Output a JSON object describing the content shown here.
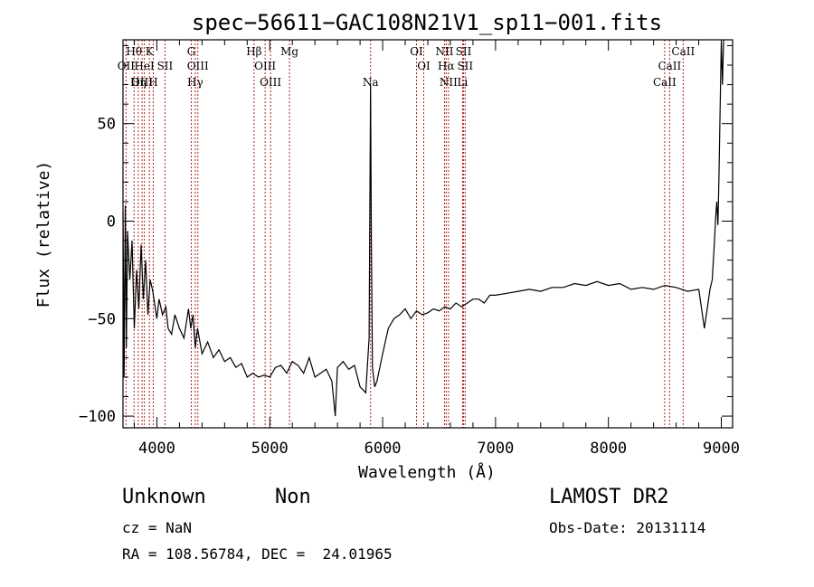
{
  "chart_data": {
    "type": "line",
    "title": "spec−56611−GAC108N21V1_sp11−001.fits",
    "xlabel": "Wavelength (Å)",
    "ylabel": "Flux (relative)",
    "xlim": [
      3700,
      9100
    ],
    "ylim": [
      -106,
      93
    ],
    "x_ticks": [
      4000,
      5000,
      6000,
      7000,
      8000,
      9000
    ],
    "y_ticks": [
      -100,
      -50,
      0,
      50
    ],
    "grid": false,
    "series": [
      {
        "x": [
          3700,
          3710,
          3720,
          3730,
          3740,
          3760,
          3780,
          3800,
          3820,
          3840,
          3860,
          3880,
          3900,
          3920,
          3940,
          3960,
          3980,
          4000,
          4020,
          4050,
          4080,
          4100,
          4130,
          4160,
          4200,
          4240,
          4280,
          4300,
          4320,
          4340,
          4360,
          4400,
          4450,
          4500,
          4550,
          4600,
          4650,
          4700,
          4750,
          4800,
          4850,
          4900,
          4950,
          5000,
          5050,
          5100,
          5150,
          5200,
          5250,
          5300,
          5350,
          5400,
          5450,
          5500,
          5550,
          5580,
          5600,
          5650,
          5700,
          5750,
          5800,
          5850,
          5880,
          5893,
          5900,
          5910,
          5930,
          5950,
          6000,
          6050,
          6100,
          6150,
          6200,
          6250,
          6300,
          6350,
          6400,
          6450,
          6500,
          6550,
          6600,
          6650,
          6700,
          6750,
          6800,
          6850,
          6900,
          6950,
          7000,
          7100,
          7200,
          7300,
          7400,
          7500,
          7600,
          7700,
          7800,
          7900,
          8000,
          8100,
          8200,
          8300,
          8400,
          8500,
          8600,
          8700,
          8800,
          8850,
          8900,
          8920,
          8940,
          8950,
          8960,
          8970,
          8980,
          8990,
          9000,
          9010,
          9020
        ],
        "y": [
          5,
          -80,
          8,
          -65,
          -5,
          -30,
          -10,
          -55,
          -25,
          -45,
          -12,
          -40,
          -20,
          -48,
          -30,
          -35,
          -42,
          -50,
          -40,
          -48,
          -44,
          -55,
          -58,
          -48,
          -55,
          -60,
          -45,
          -55,
          -48,
          -65,
          -55,
          -68,
          -62,
          -70,
          -66,
          -72,
          -70,
          -75,
          -73,
          -80,
          -78,
          -80,
          -79,
          -80,
          -75,
          -74,
          -78,
          -72,
          -74,
          -78,
          -70,
          -80,
          -78,
          -76,
          -82,
          -100,
          -75,
          -72,
          -76,
          -74,
          -85,
          -88,
          -60,
          70,
          -10,
          -75,
          -85,
          -82,
          -68,
          -55,
          -50,
          -48,
          -45,
          -50,
          -46,
          -48,
          -47,
          -45,
          -46,
          -44,
          -45,
          -42,
          -44,
          -42,
          -40,
          -40,
          -42,
          -38,
          -38,
          -37,
          -36,
          -35,
          -36,
          -34,
          -34,
          -32,
          -33,
          -31,
          -33,
          -32,
          -35,
          -34,
          -35,
          -33,
          -34,
          -36,
          -35,
          -55,
          -35,
          -30,
          -10,
          2,
          10,
          -2,
          25,
          60,
          92,
          70,
          93
        ]
      }
    ],
    "spectral_lines": [
      {
        "name": "Hθ",
        "wavelength": 3798,
        "row": 1
      },
      {
        "name": "K",
        "wavelength": 3934,
        "row": 1
      },
      {
        "name": "G",
        "wavelength": 4305,
        "row": 1
      },
      {
        "name": "Hβ",
        "wavelength": 4861,
        "row": 1
      },
      {
        "name": "Mg",
        "wavelength": 5175,
        "row": 1
      },
      {
        "name": "OI",
        "wavelength": 6300,
        "row": 1
      },
      {
        "name": "NII",
        "wavelength": 6548,
        "row": 1
      },
      {
        "name": "SII",
        "wavelength": 6717,
        "row": 1
      },
      {
        "name": "CaII",
        "wavelength": 8662,
        "row": 1
      },
      {
        "name": "OII",
        "wavelength": 3727,
        "row": 2
      },
      {
        "name": "HeI",
        "wavelength": 3889,
        "row": 2
      },
      {
        "name": "SII",
        "wavelength": 4072,
        "row": 2
      },
      {
        "name": "OIII",
        "wavelength": 4363,
        "row": 2
      },
      {
        "name": "OIII",
        "wavelength": 4959,
        "row": 2
      },
      {
        "name": "OI",
        "wavelength": 6364,
        "row": 2
      },
      {
        "name": "Hα",
        "wavelength": 6563,
        "row": 2
      },
      {
        "name": "SII",
        "wavelength": 6731,
        "row": 2
      },
      {
        "name": "CaII",
        "wavelength": 8542,
        "row": 2
      },
      {
        "name": "OIII",
        "wavelength": 3869,
        "row": 3
      },
      {
        "name": "Hη",
        "wavelength": 3835,
        "row": 3
      },
      {
        "name": "H",
        "wavelength": 3968,
        "row": 3
      },
      {
        "name": "Hγ",
        "wavelength": 4340,
        "row": 3
      },
      {
        "name": "OIII",
        "wavelength": 5007,
        "row": 3
      },
      {
        "name": "Na",
        "wavelength": 5893,
        "row": 3
      },
      {
        "name": "NII",
        "wavelength": 6583,
        "row": 3
      },
      {
        "name": "Li",
        "wavelength": 6708,
        "row": 3
      },
      {
        "name": "CaII",
        "wavelength": 8498,
        "row": 3
      }
    ]
  },
  "info": {
    "classification": "Unknown",
    "subclass": "Non",
    "redshift": "cz = NaN",
    "coordinates": "RA = 108.56784, DEC =  24.01965",
    "survey": "LAMOST DR2",
    "obs_date": "Obs-Date: 20131114"
  }
}
